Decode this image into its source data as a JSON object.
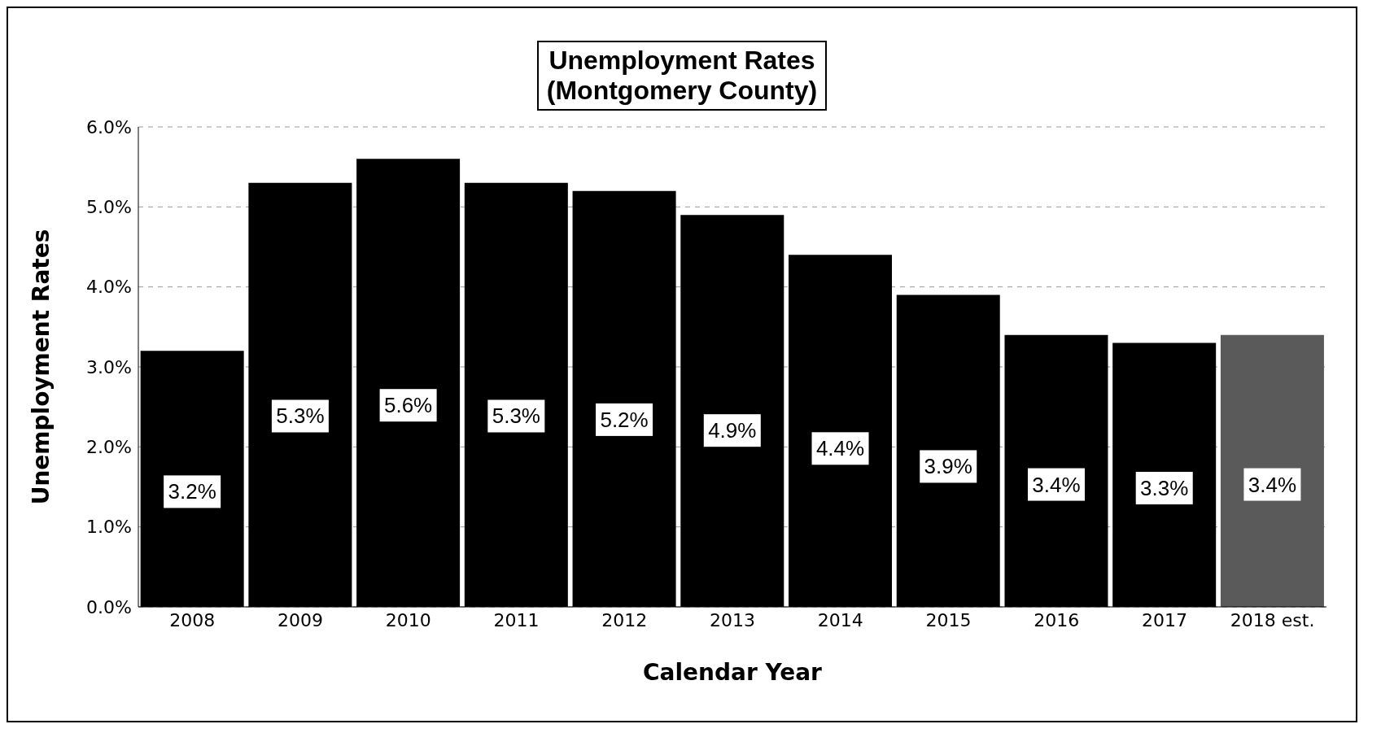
{
  "chart_data": {
    "type": "bar",
    "title": "Unemployment Rates\n(Montgomery County)",
    "xlabel": "Calendar Year",
    "ylabel": "Unemployment Rates",
    "categories": [
      "2008",
      "2009",
      "2010",
      "2011",
      "2012",
      "2013",
      "2014",
      "2015",
      "2016",
      "2017",
      "2018 est."
    ],
    "values": [
      3.2,
      5.3,
      5.6,
      5.3,
      5.2,
      4.9,
      4.4,
      3.9,
      3.4,
      3.3,
      3.4
    ],
    "value_labels": [
      "3.2%",
      "5.3%",
      "5.6%",
      "5.3%",
      "5.2%",
      "4.9%",
      "4.4%",
      "3.9%",
      "3.4%",
      "3.3%",
      "3.4%"
    ],
    "colors": [
      "#000000",
      "#000000",
      "#000000",
      "#000000",
      "#000000",
      "#000000",
      "#000000",
      "#000000",
      "#000000",
      "#000000",
      "#5a5a5a"
    ],
    "ylim": [
      0,
      6
    ],
    "yticks": [
      {
        "value": 0,
        "label": "0.0%"
      },
      {
        "value": 1,
        "label": "1.0%"
      },
      {
        "value": 2,
        "label": "2.0%"
      },
      {
        "value": 3,
        "label": "3.0%"
      },
      {
        "value": 4,
        "label": "4.0%"
      },
      {
        "value": 5,
        "label": "5.0%"
      },
      {
        "value": 6,
        "label": "6.0%"
      }
    ],
    "grid": "y"
  }
}
